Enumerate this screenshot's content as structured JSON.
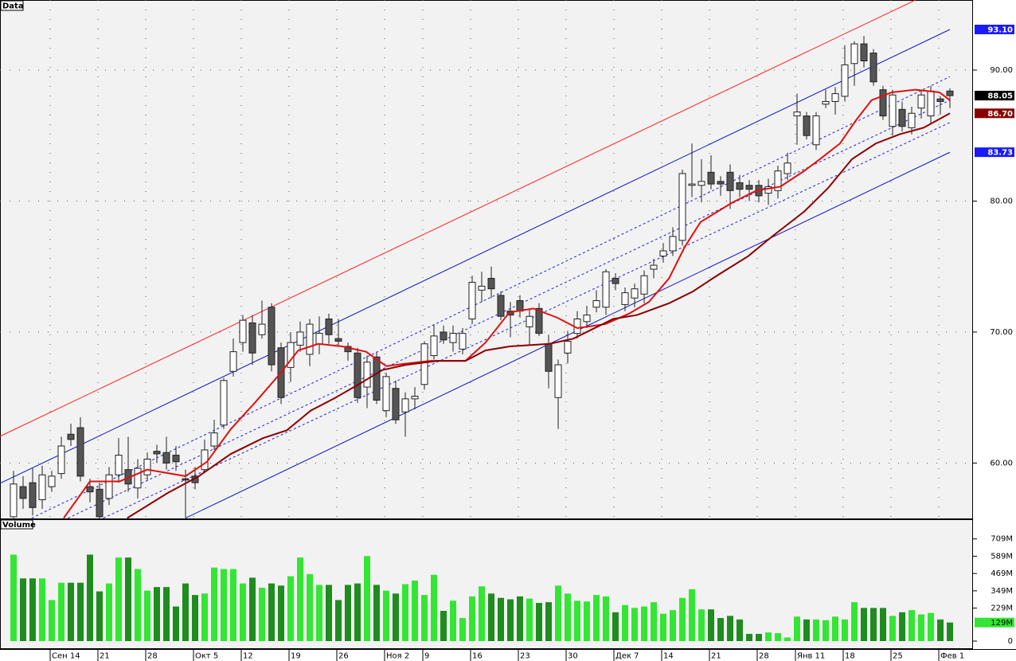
{
  "chart_data": {
    "type": "candlestick",
    "panel_title": "Data",
    "categories": [
      null,
      null,
      null,
      null,
      "Сен 14",
      null,
      null,
      null,
      null,
      "21",
      null,
      null,
      null,
      null,
      "28",
      null,
      null,
      null,
      null,
      "Окт 5",
      null,
      null,
      null,
      null,
      "12",
      null,
      null,
      null,
      null,
      "19",
      null,
      null,
      null,
      null,
      "26",
      null,
      null,
      null,
      null,
      "Ноя 2",
      null,
      null,
      null,
      "9",
      null,
      null,
      null,
      null,
      "16",
      null,
      null,
      null,
      null,
      "23",
      null,
      null,
      null,
      null,
      "30",
      null,
      null,
      null,
      null,
      "Дек 7",
      null,
      null,
      null,
      null,
      "14",
      null,
      null,
      null,
      null,
      "21",
      null,
      null,
      null,
      null,
      "28",
      null,
      null,
      null,
      "Янв 11",
      null,
      null,
      null,
      null,
      "18",
      null,
      null,
      null,
      null,
      "25",
      null,
      null,
      null,
      null,
      "Фев 1",
      null
    ],
    "open": [
      55.9,
      58.2,
      58.5,
      57.2,
      58.2,
      59.2,
      62.2,
      62.7,
      58.2,
      58.0,
      57.3,
      59.1,
      59.5,
      58.1,
      59.1,
      60.9,
      60.8,
      60.6,
      58.8,
      59.0,
      59.5,
      61.3,
      62.9,
      67.0,
      69.2,
      70.7,
      69.8,
      71.9,
      68.8,
      67.3,
      69.0,
      68.3,
      69.1,
      71.0,
      69.5,
      68.9,
      68.4,
      65.8,
      68.1,
      64.0,
      65.7,
      63.9,
      64.9,
      66.0,
      68.2,
      70.0,
      69.2,
      68.7,
      71.0,
      73.2,
      74.1,
      72.8,
      71.6,
      72.4,
      70.4,
      71.8,
      69.1,
      65.0,
      68.4,
      69.9,
      70.8,
      71.9,
      71.9,
      74.1,
      72.1,
      72.6,
      72.9,
      74.8,
      75.8,
      76.2,
      77.0,
      81.2,
      81.2,
      82.2,
      81.5,
      82.2,
      81.4,
      81.2,
      81.2,
      80.6,
      80.8,
      82.1,
      86.5,
      86.5,
      84.3,
      87.4,
      87.6,
      88.0,
      90.5,
      92.0,
      91.3,
      88.5,
      85.7,
      87.0,
      85.6,
      87.1,
      86.5,
      87.8,
      88.4
    ],
    "high": [
      59.4,
      59.0,
      59.6,
      59.8,
      59.4,
      62.0,
      63.0,
      63.5,
      58.8,
      58.5,
      59.7,
      61.9,
      62.0,
      60.3,
      60.8,
      61.4,
      62.0,
      61.3,
      59.5,
      59.7,
      61.8,
      63.3,
      66.5,
      69.5,
      71.3,
      71.3,
      72.4,
      72.2,
      69.2,
      70.0,
      70.8,
      71.0,
      71.2,
      71.4,
      71.0,
      69.2,
      68.8,
      68.2,
      68.5,
      66.9,
      66.3,
      65.4,
      65.8,
      69.3,
      70.6,
      70.5,
      70.5,
      70.3,
      74.3,
      74.6,
      75.0,
      73.1,
      72.3,
      72.8,
      71.7,
      72.2,
      69.8,
      67.9,
      70.1,
      71.6,
      72.0,
      73.2,
      74.8,
      74.5,
      73.4,
      73.7,
      74.7,
      75.6,
      76.8,
      78.0,
      82.4,
      84.4,
      83.2,
      83.5,
      81.9,
      82.8,
      82.0,
      81.6,
      81.6,
      81.7,
      82.7,
      83.7,
      88.2,
      86.8,
      86.8,
      88.5,
      88.7,
      91.9,
      92.2,
      92.6,
      91.6,
      88.8,
      88.5,
      87.6,
      87.2,
      88.5,
      88.8,
      88.0,
      88.6
    ],
    "low": [
      55.8,
      56.5,
      56.0,
      56.5,
      57.8,
      58.8,
      61.3,
      58.6,
      57.0,
      55.7,
      56.8,
      58.5,
      57.8,
      57.3,
      58.7,
      60.0,
      59.5,
      59.4,
      55.8,
      58.0,
      59.3,
      61.0,
      62.6,
      66.6,
      68.5,
      67.5,
      69.5,
      67.0,
      64.5,
      66.2,
      68.5,
      67.4,
      68.3,
      69.1,
      68.9,
      67.8,
      64.6,
      64.2,
      64.5,
      63.5,
      63.0,
      62.0,
      64.1,
      65.6,
      67.9,
      69.1,
      68.5,
      68.3,
      70.6,
      72.3,
      72.6,
      70.9,
      69.6,
      71.1,
      69.0,
      69.7,
      65.7,
      62.6,
      67.6,
      69.5,
      70.3,
      71.5,
      71.3,
      73.2,
      71.6,
      71.9,
      72.2,
      74.1,
      75.3,
      75.8,
      76.6,
      80.3,
      79.9,
      80.9,
      80.4,
      79.4,
      80.3,
      80.0,
      79.9,
      79.7,
      80.2,
      81.6,
      84.3,
      84.7,
      83.9,
      87.1,
      86.6,
      87.6,
      88.8,
      90.2,
      88.8,
      86.2,
      85.0,
      85.3,
      85.1,
      86.3,
      85.9,
      86.6,
      87.1
    ],
    "close": [
      58.4,
      57.3,
      56.6,
      59.1,
      59.0,
      61.3,
      61.8,
      59.0,
      57.8,
      55.9,
      59.1,
      60.6,
      58.4,
      59.6,
      60.3,
      60.7,
      60.0,
      60.1,
      58.7,
      58.5,
      61.0,
      62.3,
      66.3,
      68.5,
      70.9,
      68.4,
      70.6,
      67.5,
      65.0,
      69.2,
      70.0,
      70.6,
      69.9,
      69.8,
      69.3,
      68.5,
      65.0,
      67.7,
      64.8,
      66.6,
      63.3,
      64.9,
      65.1,
      69.1,
      69.7,
      69.4,
      69.9,
      69.9,
      73.8,
      73.5,
      73.3,
      71.2,
      71.3,
      71.6,
      71.2,
      69.9,
      67.0,
      67.5,
      69.3,
      71.0,
      71.3,
      72.4,
      74.6,
      73.7,
      73.0,
      73.3,
      74.3,
      75.1,
      76.2,
      77.3,
      82.1,
      81.3,
      81.5,
      81.3,
      81.3,
      80.8,
      80.9,
      80.9,
      80.4,
      81.1,
      82.3,
      82.9,
      86.8,
      85.0,
      86.5,
      87.6,
      88.2,
      90.4,
      92.0,
      90.7,
      89.1,
      86.5,
      88.1,
      85.7,
      86.7,
      88.1,
      88.4,
      87.6,
      88.05
    ],
    "up_color": "#ffffff",
    "down_color": "#555555",
    "ylim": [
      55.71,
      95.35
    ],
    "yticks": [
      {
        "value": 60,
        "label": "60.00"
      },
      {
        "value": 70,
        "label": "70.00"
      },
      {
        "value": 80,
        "label": "80.00"
      },
      {
        "value": 90,
        "label": "90.00"
      }
    ],
    "grid": true,
    "overlays": [
      {
        "color": "#e01010",
        "x": [
          5.25,
          8,
          11.1,
          14,
          18,
          20.25,
          22.75,
          25.25,
          27.75,
          29.8,
          31.9,
          34.4,
          36.9,
          39,
          41.1,
          43.6,
          47.3,
          49.4,
          51.9,
          54.4,
          56.9,
          59,
          61.9,
          64.4,
          66.5,
          68.6,
          70.25,
          71.9,
          75.25,
          77.75,
          80.25,
          82.75,
          84.4,
          86.5,
          88.2,
          89.8,
          91.9,
          94.4,
          96.9,
          98
        ],
        "values": [
          55.8,
          58.6,
          58.6,
          59.5,
          59.0,
          60.1,
          62.6,
          64.6,
          66.7,
          68.6,
          69.1,
          68.9,
          68.5,
          67.4,
          67.6,
          67.8,
          67.8,
          69.2,
          71.5,
          71.8,
          71.1,
          70.3,
          70.6,
          71.4,
          72.3,
          74.1,
          76.5,
          78.4,
          79.9,
          80.8,
          81.1,
          82.3,
          83.2,
          84.4,
          86.2,
          87.7,
          88.3,
          88.5,
          88.3,
          87.7
        ]
      },
      {
        "color": "#8b0000",
        "x": [
          11.9,
          16.1,
          19.4,
          22.75,
          26.1,
          28.6,
          31.1,
          33.6,
          36.1,
          38.6,
          41.1,
          44.4,
          47.3,
          49.4,
          51.9,
          56.1,
          58.6,
          60.25,
          62.75,
          65.25,
          68.6,
          71.1,
          73.6,
          76.9,
          79.4,
          82.75,
          85.25,
          87.75,
          90.25,
          92.75,
          95.25,
          98
        ],
        "values": [
          55.8,
          57.7,
          59.0,
          60.7,
          61.9,
          62.5,
          64.0,
          64.95,
          66.0,
          67.1,
          67.5,
          67.8,
          67.8,
          68.6,
          68.9,
          69.1,
          69.5,
          70.1,
          71.0,
          71.3,
          72.2,
          73.1,
          74.3,
          75.8,
          77.3,
          79.2,
          81.0,
          83.2,
          84.4,
          85.1,
          85.6,
          86.7
        ]
      }
    ],
    "channels": [
      {
        "color": "#ff2020",
        "dashed": false,
        "x": [
          -1.42,
          94.4
        ],
        "values": [
          62.04,
          95.35
        ]
      },
      {
        "color": "#1010c0",
        "dashed": false,
        "x": [
          -1.42,
          98
        ],
        "values": [
          58.45,
          93.1
        ]
      },
      {
        "color": "#1010c0",
        "dashed": false,
        "x": [
          18,
          98
        ],
        "values": [
          55.8,
          83.73
        ]
      },
      {
        "color": "#2020d0",
        "dashed": true,
        "x": [
          1.9,
          98
        ],
        "values": [
          55.8,
          89.5
        ]
      },
      {
        "color": "#2020d0",
        "dashed": true,
        "x": [
          5.7,
          98
        ],
        "values": [
          55.8,
          87.7
        ]
      },
      {
        "color": "#2020d0",
        "dashed": true,
        "x": [
          9.4,
          98
        ],
        "values": [
          55.8,
          86.0
        ]
      }
    ],
    "markers": [
      {
        "value": 93.1,
        "label": "93.10",
        "color": "#1a1aff"
      },
      {
        "value": 88.05,
        "label": "88.05",
        "color": "#000000"
      },
      {
        "value": 86.7,
        "label": "86.70",
        "color": "#8b0000"
      },
      {
        "value": 83.73,
        "label": "83.73",
        "color": "#1a1aff"
      }
    ],
    "volume": {
      "panel_title": "Volume",
      "values": [
        600,
        435,
        435,
        435,
        285,
        405,
        405,
        405,
        600,
        345,
        400,
        580,
        580,
        500,
        350,
        375,
        375,
        240,
        400,
        320,
        330,
        510,
        500,
        500,
        400,
        440,
        370,
        400,
        385,
        450,
        580,
        465,
        390,
        390,
        285,
        390,
        400,
        590,
        390,
        350,
        330,
        395,
        420,
        320,
        460,
        210,
        280,
        160,
        310,
        380,
        330,
        300,
        290,
        310,
        295,
        265,
        270,
        385,
        330,
        280,
        275,
        320,
        310,
        200,
        250,
        230,
        240,
        270,
        190,
        215,
        300,
        360,
        220,
        220,
        160,
        175,
        150,
        50,
        50,
        60,
        55,
        25,
        170,
        150,
        150,
        145,
        170,
        150,
        270,
        230,
        230,
        230,
        175,
        200,
        215,
        185,
        195,
        150,
        129
      ],
      "up_color": "#33e633",
      "down_color": "#1e8c1e",
      "ylim": [
        0,
        840
      ],
      "yticks": [
        0,
        {
          "value": 229,
          "label": "229M"
        },
        {
          "value": 349,
          "label": "349M"
        },
        {
          "value": 469,
          "label": "469M"
        },
        {
          "value": 589,
          "label": "589M"
        },
        {
          "value": 709,
          "label": "709M"
        }
      ],
      "marker": {
        "value": 129,
        "label": "129M",
        "color": "#33e633"
      }
    }
  }
}
